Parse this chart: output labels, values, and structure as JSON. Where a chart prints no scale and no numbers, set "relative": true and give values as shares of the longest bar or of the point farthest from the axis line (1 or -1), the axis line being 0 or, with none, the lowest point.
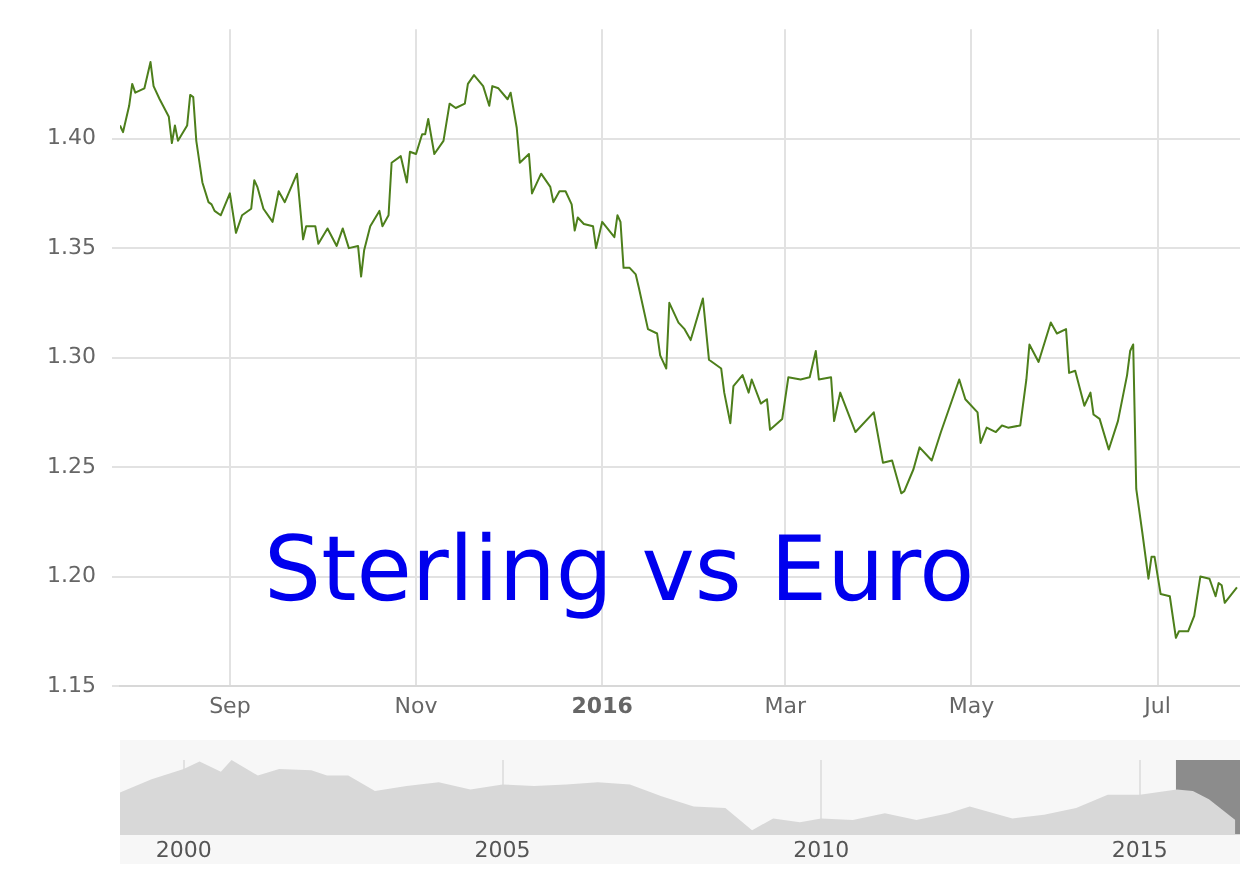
{
  "chart_data": [
    {
      "type": "line",
      "title": "Sterling vs Euro",
      "x": [
        "2015-07-27",
        "2015-07-28",
        "2015-07-30",
        "2015-07-31",
        "2015-08-01",
        "2015-08-04",
        "2015-08-06",
        "2015-08-07",
        "2015-08-09",
        "2015-08-12",
        "2015-08-13",
        "2015-08-14",
        "2015-08-15",
        "2015-08-18",
        "2015-08-19",
        "2015-08-20",
        "2015-08-21",
        "2015-08-23",
        "2015-08-25",
        "2015-08-26",
        "2015-08-27",
        "2015-08-29",
        "2015-09-01",
        "2015-09-03",
        "2015-09-05",
        "2015-09-08",
        "2015-09-09",
        "2015-09-10",
        "2015-09-12",
        "2015-09-15",
        "2015-09-17",
        "2015-09-19",
        "2015-09-23",
        "2015-09-25",
        "2015-09-26",
        "2015-09-29",
        "2015-09-30",
        "2015-10-03",
        "2015-10-06",
        "2015-10-08",
        "2015-10-10",
        "2015-10-13",
        "2015-10-14",
        "2015-10-15",
        "2015-10-17",
        "2015-10-20",
        "2015-10-21",
        "2015-10-23",
        "2015-10-24",
        "2015-10-27",
        "2015-10-29",
        "2015-10-30",
        "2015-11-01",
        "2015-11-03",
        "2015-11-04",
        "2015-11-05",
        "2015-11-07",
        "2015-11-10",
        "2015-11-12",
        "2015-11-14",
        "2015-11-17",
        "2015-11-18",
        "2015-11-20",
        "2015-11-23",
        "2015-11-25",
        "2015-11-26",
        "2015-11-28",
        "2015-12-01",
        "2015-12-02",
        "2015-12-04",
        "2015-12-05",
        "2015-12-08",
        "2015-12-09",
        "2015-12-12",
        "2015-12-15",
        "2015-12-16",
        "2015-12-18",
        "2015-12-20",
        "2015-12-22",
        "2015-12-23",
        "2015-12-24",
        "2015-12-26",
        "2015-12-29",
        "2015-12-30",
        "2016-01-01",
        "2016-01-05",
        "2016-01-06",
        "2016-01-07",
        "2016-01-08",
        "2016-01-10",
        "2016-01-12",
        "2016-01-13",
        "2016-01-16",
        "2016-01-19",
        "2016-01-20",
        "2016-01-22",
        "2016-01-23",
        "2016-01-26",
        "2016-01-28",
        "2016-01-30",
        "2016-02-03",
        "2016-02-05",
        "2016-02-09",
        "2016-02-10",
        "2016-02-12",
        "2016-02-13",
        "2016-02-16",
        "2016-02-18",
        "2016-02-19",
        "2016-02-22",
        "2016-02-24",
        "2016-02-25",
        "2016-02-29",
        "2016-03-02",
        "2016-03-06",
        "2016-03-09",
        "2016-03-11",
        "2016-03-12",
        "2016-03-16",
        "2016-03-17",
        "2016-03-19",
        "2016-03-24",
        "2016-03-30",
        "2016-04-02",
        "2016-04-05",
        "2016-04-08",
        "2016-04-09",
        "2016-04-12",
        "2016-04-14",
        "2016-04-18",
        "2016-04-21",
        "2016-04-24",
        "2016-04-27",
        "2016-04-29",
        "2016-05-03",
        "2016-05-04",
        "2016-05-06",
        "2016-05-09",
        "2016-05-11",
        "2016-05-13",
        "2016-05-17",
        "2016-05-19",
        "2016-05-20",
        "2016-05-23",
        "2016-05-27",
        "2016-05-29",
        "2016-06-01",
        "2016-06-02",
        "2016-06-04",
        "2016-06-07",
        "2016-06-09",
        "2016-06-10",
        "2016-06-12",
        "2016-06-15",
        "2016-06-18",
        "2016-06-21",
        "2016-06-22",
        "2016-06-23",
        "2016-06-24",
        "2016-06-26",
        "2016-06-28",
        "2016-06-29",
        "2016-06-30",
        "2016-07-02",
        "2016-07-05",
        "2016-07-07",
        "2016-07-08",
        "2016-07-11",
        "2016-07-13",
        "2016-07-15",
        "2016-07-18",
        "2016-07-20",
        "2016-07-21",
        "2016-07-22",
        "2016-07-23",
        "2016-07-27"
      ],
      "series": [
        {
          "color": "#4d7f1b",
          "values": [
            1.406,
            1.403,
            1.415,
            1.425,
            1.421,
            1.423,
            1.435,
            1.424,
            1.418,
            1.41,
            1.398,
            1.406,
            1.399,
            1.406,
            1.42,
            1.419,
            1.399,
            1.38,
            1.371,
            1.37,
            1.367,
            1.365,
            1.375,
            1.357,
            1.365,
            1.368,
            1.381,
            1.378,
            1.368,
            1.362,
            1.376,
            1.371,
            1.384,
            1.354,
            1.36,
            1.36,
            1.352,
            1.359,
            1.351,
            1.359,
            1.35,
            1.351,
            1.337,
            1.349,
            1.36,
            1.367,
            1.36,
            1.365,
            1.389,
            1.392,
            1.38,
            1.394,
            1.393,
            1.402,
            1.402,
            1.409,
            1.393,
            1.399,
            1.416,
            1.414,
            1.416,
            1.425,
            1.429,
            1.424,
            1.415,
            1.424,
            1.423,
            1.418,
            1.421,
            1.405,
            1.389,
            1.393,
            1.375,
            1.384,
            1.378,
            1.371,
            1.376,
            1.376,
            1.37,
            1.358,
            1.364,
            1.361,
            1.36,
            1.35,
            1.362,
            1.355,
            1.365,
            1.362,
            1.341,
            1.341,
            1.338,
            1.332,
            1.313,
            1.311,
            1.301,
            1.295,
            1.325,
            1.316,
            1.313,
            1.308,
            1.327,
            1.299,
            1.295,
            1.284,
            1.27,
            1.287,
            1.292,
            1.284,
            1.29,
            1.279,
            1.281,
            1.267,
            1.272,
            1.291,
            1.29,
            1.291,
            1.303,
            1.29,
            1.291,
            1.271,
            1.284,
            1.266,
            1.275,
            1.252,
            1.253,
            1.238,
            1.239,
            1.249,
            1.259,
            1.253,
            1.266,
            1.278,
            1.29,
            1.281,
            1.275,
            1.261,
            1.268,
            1.266,
            1.269,
            1.268,
            1.269,
            1.29,
            1.306,
            1.298,
            1.316,
            1.311,
            1.313,
            1.293,
            1.294,
            1.278,
            1.284,
            1.274,
            1.272,
            1.258,
            1.271,
            1.292,
            1.303,
            1.306,
            1.24,
            1.22,
            1.199,
            1.209,
            1.209,
            1.192,
            1.191,
            1.172,
            1.175,
            1.175,
            1.182,
            1.2,
            1.199,
            1.191,
            1.197,
            1.196,
            1.188,
            1.195
          ]
        }
      ],
      "xlim": [
        "2015-07-27",
        "2016-07-28"
      ],
      "xticks": [
        {
          "value": "2015-09-01",
          "label": "Sep"
        },
        {
          "value": "2015-11-01",
          "label": "Nov"
        },
        {
          "value": "2016-01-01",
          "label": "2016"
        },
        {
          "value": "2016-03-01",
          "label": "Mar"
        },
        {
          "value": "2016-05-01",
          "label": "May"
        },
        {
          "value": "2016-07-01",
          "label": "Jul"
        }
      ],
      "ylim": [
        1.15,
        1.45
      ],
      "yticks": [
        {
          "value": 1.15,
          "label": "1.15"
        },
        {
          "value": 1.2,
          "label": "1.20"
        },
        {
          "value": 1.25,
          "label": "1.25"
        },
        {
          "value": 1.3,
          "label": "1.30"
        },
        {
          "value": 1.35,
          "label": "1.35"
        },
        {
          "value": 1.4,
          "label": "1.40"
        }
      ],
      "grid": true
    },
    {
      "type": "area",
      "relative": true,
      "x": [
        "1999-01",
        "1999-07",
        "2000-01",
        "2000-04",
        "2000-08",
        "2000-10",
        "2001-03",
        "2001-07",
        "2002-01",
        "2002-04",
        "2002-08",
        "2003-01",
        "2003-07",
        "2004-01",
        "2004-07",
        "2005-01",
        "2005-07",
        "2006-01",
        "2006-07",
        "2007-01",
        "2007-07",
        "2008-01",
        "2008-07",
        "2008-12",
        "2009-04",
        "2009-09",
        "2010-01",
        "2010-07",
        "2011-01",
        "2011-07",
        "2012-01",
        "2012-05",
        "2013-01",
        "2013-07",
        "2014-01",
        "2014-07",
        "2015-01",
        "2015-08",
        "2015-11",
        "2016-02",
        "2016-07"
      ],
      "series": [
        {
          "color": "#d8d8d8",
          "values": [
            0.56,
            0.74,
            0.88,
            0.98,
            0.84,
            1,
            0.79,
            0.88,
            0.86,
            0.79,
            0.79,
            0.58,
            0.65,
            0.7,
            0.6,
            0.67,
            0.65,
            0.67,
            0.7,
            0.67,
            0.51,
            0.37,
            0.35,
            0.05,
            0.21,
            0.16,
            0.21,
            0.19,
            0.28,
            0.19,
            0.28,
            0.37,
            0.21,
            0.26,
            0.35,
            0.53,
            0.53,
            0.6,
            0.58,
            0.47,
            0.19
          ]
        }
      ],
      "xlim": [
        "1999-01",
        "2016-07-28"
      ],
      "xticks": [
        {
          "value": "2000",
          "label": "2000"
        },
        {
          "value": "2005",
          "label": "2005"
        },
        {
          "value": "2010",
          "label": "2010"
        },
        {
          "value": "2015",
          "label": "2015"
        }
      ],
      "bands": [
        {
          "axis": "x",
          "from": "2015-07-27",
          "to": "2016-07-28",
          "color": "#8c8c8c"
        }
      ],
      "grid": "x"
    }
  ]
}
